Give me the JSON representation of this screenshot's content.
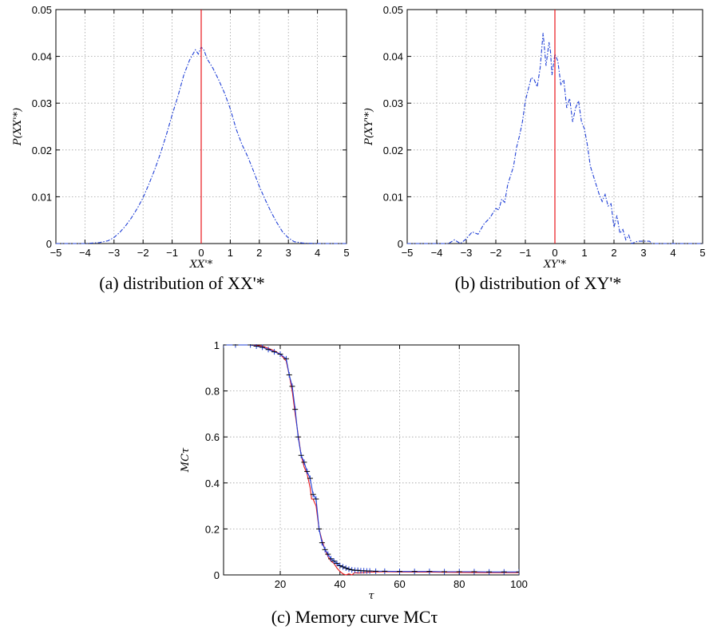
{
  "chart_data": [
    {
      "id": "a",
      "type": "line",
      "xlabel": "XX'*",
      "ylabel": "P(XX'*)",
      "caption": "(a) distribution of XX'*",
      "xlim": [
        -5,
        5
      ],
      "ylim": [
        0,
        0.05
      ],
      "xticks": [
        -5,
        -4,
        -3,
        -2,
        -1,
        0,
        1,
        2,
        3,
        4,
        5
      ],
      "yticks": [
        0,
        0.01,
        0.02,
        0.03,
        0.04,
        0.05
      ],
      "ytick_labels": [
        "0",
        "0.01",
        "0.02",
        "0.03",
        "0.04",
        "0.05"
      ],
      "grid": true,
      "vline": {
        "x": 0,
        "color": "#e8141a"
      },
      "series": [
        {
          "color": "#1f3fd6",
          "style": "dashdot",
          "x": [
            -5,
            -4,
            -3.5,
            -3.2,
            -3,
            -2.8,
            -2.6,
            -2.4,
            -2.2,
            -2,
            -1.8,
            -1.6,
            -1.4,
            -1.2,
            -1,
            -0.8,
            -0.6,
            -0.4,
            -0.2,
            -0.1,
            0,
            0.1,
            0.2,
            0.4,
            0.6,
            0.8,
            1,
            1.2,
            1.4,
            1.6,
            1.8,
            2,
            2.2,
            2.4,
            2.6,
            2.8,
            3,
            3.2,
            3.5,
            4,
            5
          ],
          "y": [
            0,
            0,
            0.0002,
            0.0006,
            0.0013,
            0.0024,
            0.0038,
            0.0055,
            0.0075,
            0.0098,
            0.0127,
            0.0158,
            0.0193,
            0.0232,
            0.0275,
            0.0315,
            0.036,
            0.0392,
            0.0414,
            0.0405,
            0.042,
            0.0413,
            0.0395,
            0.0375,
            0.035,
            0.0322,
            0.0288,
            0.0245,
            0.0212,
            0.0186,
            0.0155,
            0.0122,
            0.0094,
            0.0068,
            0.0045,
            0.0025,
            0.0012,
            0.0004,
            0.0001,
            0,
            0
          ]
        }
      ]
    },
    {
      "id": "b",
      "type": "line",
      "xlabel": "XY'*",
      "ylabel": "P(XY'*)",
      "caption": "(b) distribution of XY'*",
      "xlim": [
        -5,
        5
      ],
      "ylim": [
        0,
        0.05
      ],
      "xticks": [
        -5,
        -4,
        -3,
        -2,
        -1,
        0,
        1,
        2,
        3,
        4,
        5
      ],
      "yticks": [
        0,
        0.01,
        0.02,
        0.03,
        0.04,
        0.05
      ],
      "ytick_labels": [
        "0",
        "0.01",
        "0.02",
        "0.03",
        "0.04",
        "0.05"
      ],
      "grid": true,
      "vline": {
        "x": 0,
        "color": "#e8141a"
      },
      "series": [
        {
          "color": "#1f3fd6",
          "style": "dashdot",
          "x": [
            -5,
            -3.6,
            -3.4,
            -3.2,
            -3,
            -2.8,
            -2.6,
            -2.4,
            -2.2,
            -2,
            -1.9,
            -1.8,
            -1.7,
            -1.6,
            -1.5,
            -1.4,
            -1.3,
            -1.2,
            -1.1,
            -1,
            -0.9,
            -0.8,
            -0.7,
            -0.6,
            -0.5,
            -0.4,
            -0.3,
            -0.2,
            -0.15,
            -0.1,
            0,
            0.1,
            0.2,
            0.3,
            0.4,
            0.5,
            0.6,
            0.7,
            0.8,
            0.9,
            1,
            1.1,
            1.2,
            1.3,
            1.4,
            1.5,
            1.6,
            1.7,
            1.8,
            1.9,
            2,
            2.1,
            2.2,
            2.3,
            2.4,
            2.5,
            2.6,
            2.8,
            3.2,
            3.3,
            3.5,
            5
          ],
          "y": [
            0,
            0,
            0.0008,
            0,
            0.001,
            0.0025,
            0.002,
            0.0042,
            0.0055,
            0.0075,
            0.0072,
            0.0095,
            0.0088,
            0.0125,
            0.0145,
            0.0165,
            0.0205,
            0.023,
            0.026,
            0.0305,
            0.033,
            0.0355,
            0.035,
            0.0335,
            0.0375,
            0.045,
            0.038,
            0.043,
            0.041,
            0.036,
            0.0405,
            0.039,
            0.034,
            0.035,
            0.029,
            0.031,
            0.026,
            0.029,
            0.0305,
            0.026,
            0.0245,
            0.021,
            0.0165,
            0.0145,
            0.0125,
            0.0105,
            0.009,
            0.0105,
            0.008,
            0.0085,
            0.0035,
            0.006,
            0.0022,
            0.003,
            0.0008,
            0.0018,
            0,
            0.0005,
            0.0005,
            0,
            0,
            0
          ]
        }
      ]
    },
    {
      "id": "c",
      "type": "line",
      "xlabel": "τ",
      "ylabel": "MCτ",
      "caption": "(c) Memory curve MCτ",
      "xlim": [
        1,
        100
      ],
      "ylim": [
        0,
        1
      ],
      "xticks": [
        20,
        40,
        60,
        80,
        100
      ],
      "yticks": [
        0,
        0.2,
        0.4,
        0.6,
        0.8,
        1
      ],
      "ytick_labels": [
        "0",
        "0.2",
        "0.4",
        "0.6",
        "0.8",
        "1"
      ],
      "grid": true,
      "series": [
        {
          "color": "#e8141a",
          "style": "solid",
          "x": [
            1,
            10,
            14,
            16,
            18,
            20,
            22,
            23,
            24,
            25,
            26,
            27,
            28,
            29,
            30,
            30.5,
            31,
            32,
            33,
            34,
            35,
            36,
            37,
            38,
            39,
            40,
            41,
            42,
            43,
            44,
            45,
            46,
            48,
            50,
            55,
            60,
            70,
            80,
            90,
            100
          ],
          "y": [
            1,
            1,
            0.995,
            0.985,
            0.975,
            0.96,
            0.93,
            0.87,
            0.8,
            0.7,
            0.61,
            0.52,
            0.47,
            0.44,
            0.38,
            0.33,
            0.33,
            0.3,
            0.2,
            0.15,
            0.11,
            0.08,
            0.06,
            0.05,
            0.03,
            0.015,
            0.005,
            0,
            0.005,
            0,
            0.01,
            0.008,
            0.01,
            0.012,
            0.014,
            0.013,
            0.012,
            0.011,
            0.01,
            0.01
          ]
        },
        {
          "color": "#1f3fd6",
          "style": "errorbar",
          "x": [
            1,
            5,
            10,
            12,
            14,
            16,
            18,
            20,
            22,
            23,
            24,
            25,
            26,
            27,
            28,
            29,
            30,
            31,
            32,
            33,
            34,
            35,
            36,
            37,
            38,
            39,
            40,
            41,
            42,
            43,
            44,
            45,
            46,
            47,
            48,
            49,
            50,
            52,
            55,
            60,
            65,
            70,
            75,
            80,
            85,
            90,
            95,
            100
          ],
          "y": [
            1,
            1,
            1,
            0.995,
            0.99,
            0.98,
            0.97,
            0.96,
            0.94,
            0.87,
            0.82,
            0.72,
            0.6,
            0.52,
            0.49,
            0.45,
            0.42,
            0.35,
            0.33,
            0.2,
            0.14,
            0.11,
            0.09,
            0.07,
            0.06,
            0.05,
            0.04,
            0.035,
            0.03,
            0.025,
            0.022,
            0.02,
            0.02,
            0.018,
            0.018,
            0.017,
            0.017,
            0.016,
            0.016,
            0.015,
            0.015,
            0.015,
            0.014,
            0.014,
            0.014,
            0.013,
            0.013,
            0.013
          ]
        }
      ]
    }
  ]
}
